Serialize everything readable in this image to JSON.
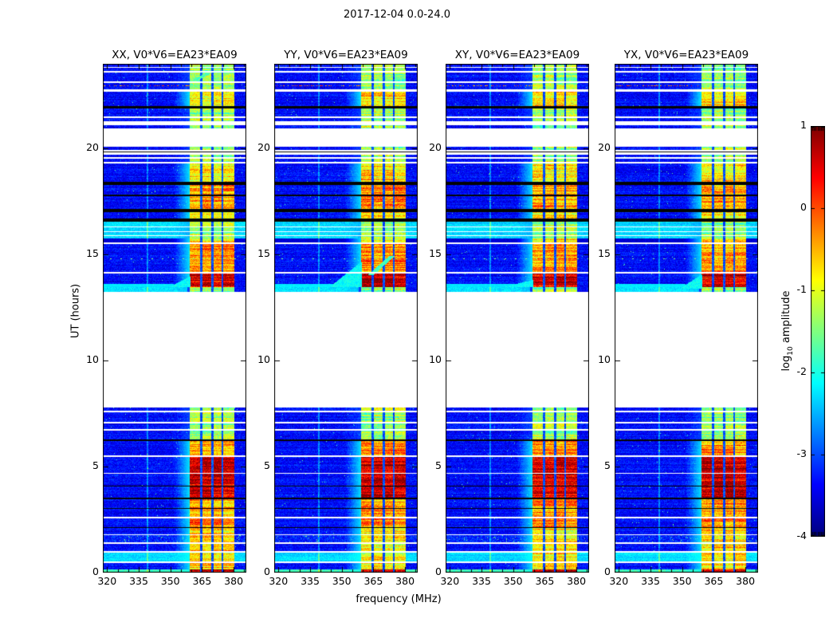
{
  "figure_title": "2017-12-04 0.0-24.0",
  "labels": {
    "xlabel": "frequency (MHz)",
    "ylabel": "UT (hours)"
  },
  "colorbar": {
    "label_pre": "log",
    "label_sub": "10",
    "label_post": " amplitude",
    "ticks": [
      1,
      0,
      -1,
      -2,
      -3,
      -4
    ],
    "vmin": -4,
    "vmax": 1,
    "colormap": "jet"
  },
  "chart_data": {
    "type": "heatmap",
    "title": "2017-12-04 0.0-24.0",
    "xlabel": "frequency (MHz)",
    "ylabel": "UT (hours)",
    "x": {
      "range": [
        318,
        386
      ],
      "ticks": [
        320,
        335,
        350,
        365,
        380
      ],
      "minor_step": 5
    },
    "y": {
      "range": [
        0,
        24
      ],
      "ticks": [
        0,
        5,
        10,
        15,
        20
      ]
    },
    "amplitude_log10_range": [
      -4,
      1
    ],
    "background_level": -3.35,
    "rfi_band": {
      "transition_mhz": [
        351.5,
        359.2
      ],
      "columns_mhz": [
        [
          359.2,
          364.2
        ],
        [
          365.2,
          369.4
        ],
        [
          370.4,
          374.2
        ],
        [
          375.2,
          380.2
        ]
      ]
    },
    "data_gaps_hours": [
      [
        7.8,
        13.25
      ],
      [
        19.3,
        20.95
      ]
    ],
    "panels": [
      {
        "pol": "XX",
        "label": "XX, V0*V6=EA23*EA09",
        "seed": 11,
        "features": [
          {
            "t": "diag",
            "h0": 23.2,
            "h1": 23.55,
            "f0": 361,
            "f1": 368
          },
          {
            "t": "wedge",
            "h0": 13.45,
            "h1": 13.95,
            "f0": 349
          }
        ]
      },
      {
        "pol": "YY",
        "label": "YY, V0*V6=EA23*EA09",
        "seed": 22,
        "features": [
          {
            "t": "diag",
            "h0": 14.05,
            "h1": 14.95,
            "f0": 364,
            "f1": 374
          },
          {
            "t": "wedge",
            "h0": 13.45,
            "h1": 14.65,
            "f0": 344
          }
        ]
      },
      {
        "pol": "XY",
        "label": "XY, V0*V6=EA23*EA09",
        "seed": 33,
        "features": [
          {
            "t": "wedge",
            "h0": 13.45,
            "h1": 13.8,
            "f0": 345
          }
        ]
      },
      {
        "pol": "YX",
        "label": "YX, V0*V6=EA23*EA09",
        "seed": 44,
        "features": [
          {
            "t": "wedge",
            "h0": 13.4,
            "h1": 14.05,
            "f0": 349
          }
        ]
      }
    ],
    "segments": [
      {
        "h0": 0.0,
        "h1": 0.14,
        "k": "d",
        "b": "ex",
        "g": "g"
      },
      {
        "h0": 0.14,
        "h1": 0.45,
        "k": "d",
        "b": "mid",
        "g": "b"
      },
      {
        "h0": 0.52,
        "h1": 0.95,
        "k": "d",
        "b": "mid",
        "g": "c"
      },
      {
        "h0": 1.02,
        "h1": 1.35,
        "k": "d",
        "b": "mid",
        "g": "b"
      },
      {
        "h0": 1.42,
        "h1": 1.75,
        "k": "d",
        "b": "mid",
        "g": "s"
      },
      {
        "h0": 1.82,
        "h1": 2.1,
        "k": "d",
        "b": "mid",
        "g": "b"
      },
      {
        "h0": 2.1,
        "h1": 2.16,
        "k": "k"
      },
      {
        "h0": 2.16,
        "h1": 2.55,
        "k": "d",
        "b": "hi",
        "g": "b"
      },
      {
        "h0": 2.62,
        "h1": 3.0,
        "k": "d",
        "b": "hi",
        "g": "b"
      },
      {
        "h0": 3.0,
        "h1": 3.06,
        "k": "k"
      },
      {
        "h0": 3.06,
        "h1": 3.45,
        "k": "d",
        "b": "hi",
        "g": "b"
      },
      {
        "h0": 3.45,
        "h1": 3.52,
        "k": "k"
      },
      {
        "h0": 3.52,
        "h1": 4.05,
        "k": "d",
        "b": "ex",
        "g": "b"
      },
      {
        "h0": 4.05,
        "h1": 4.1,
        "k": "k"
      },
      {
        "h0": 4.1,
        "h1": 4.65,
        "k": "d",
        "b": "ex",
        "g": "b"
      },
      {
        "h0": 4.72,
        "h1": 5.45,
        "k": "d",
        "b": "ex",
        "g": "b"
      },
      {
        "h0": 5.52,
        "h1": 6.2,
        "k": "d",
        "b": "hi",
        "g": "b"
      },
      {
        "h0": 6.2,
        "h1": 6.28,
        "k": "k"
      },
      {
        "h0": 6.28,
        "h1": 6.7,
        "k": "d",
        "b": "lo",
        "g": "b"
      },
      {
        "h0": 6.78,
        "h1": 7.05,
        "k": "d",
        "b": "lo",
        "g": "b"
      },
      {
        "h0": 7.12,
        "h1": 7.55,
        "k": "d",
        "b": "lo",
        "g": "b"
      },
      {
        "h0": 7.65,
        "h1": 7.8,
        "k": "d",
        "b": "lo",
        "g": "b"
      },
      {
        "h0": 13.25,
        "h1": 13.45,
        "k": "d",
        "b": "lo",
        "g": "cl"
      },
      {
        "h0": 13.45,
        "h1": 14.1,
        "k": "d",
        "b": "ex",
        "g": "b",
        "fl": "greenrow"
      },
      {
        "h0": 14.18,
        "h1": 15.5,
        "k": "d",
        "b": "hi",
        "g": "b",
        "fl": "dots"
      },
      {
        "h0": 15.58,
        "h1": 15.75,
        "k": "d",
        "b": "mid",
        "g": "dk"
      },
      {
        "h0": 15.75,
        "h1": 16.55,
        "k": "d",
        "b": "lo",
        "g": "c",
        "fl": "wl"
      },
      {
        "h0": 16.55,
        "h1": 16.7,
        "k": "k"
      },
      {
        "h0": 16.7,
        "h1": 17.0,
        "k": "d",
        "b": "mid",
        "g": "b"
      },
      {
        "h0": 17.0,
        "h1": 17.15,
        "k": "k"
      },
      {
        "h0": 17.15,
        "h1": 17.75,
        "k": "d",
        "b": "hi",
        "g": "b"
      },
      {
        "h0": 17.75,
        "h1": 17.82,
        "k": "k"
      },
      {
        "h0": 17.82,
        "h1": 18.3,
        "k": "d",
        "b": "hi",
        "g": "b"
      },
      {
        "h0": 18.3,
        "h1": 18.42,
        "k": "k"
      },
      {
        "h0": 18.42,
        "h1": 19.3,
        "k": "d",
        "b": "mid",
        "g": "b"
      },
      {
        "h0": 19.38,
        "h1": 19.52,
        "k": "d",
        "b": "lo",
        "g": "b"
      },
      {
        "h0": 19.6,
        "h1": 19.72,
        "k": "d",
        "b": "lo",
        "g": "b"
      },
      {
        "h0": 19.82,
        "h1": 19.88,
        "k": "k"
      },
      {
        "h0": 19.95,
        "h1": 20.08,
        "k": "d",
        "b": "lo",
        "g": "b"
      },
      {
        "h0": 20.95,
        "h1": 21.1,
        "k": "d",
        "b": "lo",
        "g": "b"
      },
      {
        "h0": 21.3,
        "h1": 21.45,
        "k": "d",
        "b": "lo",
        "g": "b"
      },
      {
        "h0": 21.52,
        "h1": 21.9,
        "k": "d",
        "b": "lo",
        "g": "b"
      },
      {
        "h0": 21.9,
        "h1": 22.02,
        "k": "k"
      },
      {
        "h0": 22.02,
        "h1": 22.7,
        "k": "d",
        "b": "mid",
        "g": "b"
      },
      {
        "h0": 22.78,
        "h1": 23.1,
        "k": "d",
        "b": "lo",
        "g": "b",
        "fl": "rl"
      },
      {
        "h0": 23.18,
        "h1": 23.6,
        "k": "d",
        "b": "lo",
        "g": "b"
      },
      {
        "h0": 23.68,
        "h1": 23.8,
        "k": "d",
        "b": "lo",
        "g": "b"
      },
      {
        "h0": 23.86,
        "h1": 24.0,
        "k": "d",
        "b": "lo",
        "g": "b"
      }
    ]
  }
}
